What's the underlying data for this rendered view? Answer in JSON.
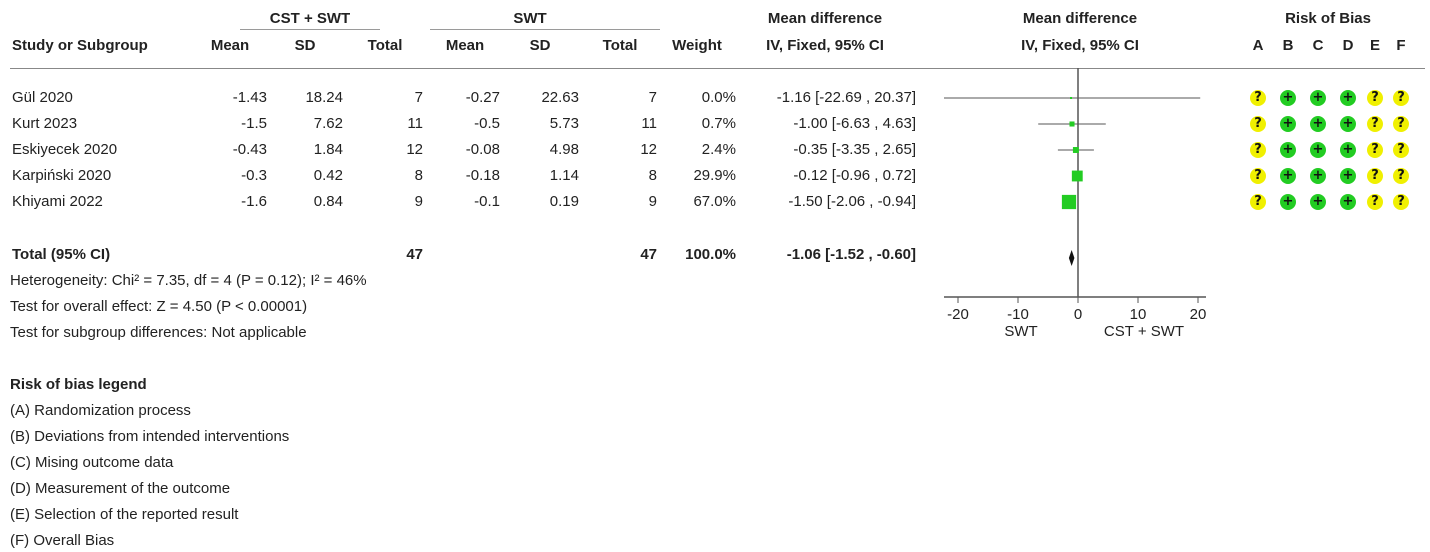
{
  "headers": {
    "group1": "CST + SWT",
    "group2": "SWT",
    "md_title": "Mean difference",
    "md_method": "IV, Fixed, 95% CI",
    "plot_title": "Mean difference",
    "plot_method": "IV, Fixed, 95% CI",
    "rob_title": "Risk of Bias",
    "study": "Study or Subgroup",
    "mean": "Mean",
    "sd": "SD",
    "total": "Total",
    "weight": "Weight",
    "rob_letters": [
      "A",
      "B",
      "C",
      "D",
      "E",
      "F"
    ]
  },
  "studies": [
    {
      "name": "Gül 2020",
      "m1": "-1.43",
      "sd1": "18.24",
      "n1": "7",
      "m2": "-0.27",
      "sd2": "22.63",
      "n2": "7",
      "weight": "0.0%",
      "ci": "-1.16 [-22.69 , 20.37]",
      "rob": [
        "?",
        "+",
        "+",
        "+",
        "?",
        "?"
      ]
    },
    {
      "name": "Kurt 2023",
      "m1": "-1.5",
      "sd1": "7.62",
      "n1": "11",
      "m2": "-0.5",
      "sd2": "5.73",
      "n2": "11",
      "weight": "0.7%",
      "ci": "-1.00 [-6.63 , 4.63]",
      "rob": [
        "?",
        "+",
        "+",
        "+",
        "?",
        "?"
      ]
    },
    {
      "name": "Eskiyecek 2020",
      "m1": "-0.43",
      "sd1": "1.84",
      "n1": "12",
      "m2": "-0.08",
      "sd2": "4.98",
      "n2": "12",
      "weight": "2.4%",
      "ci": "-0.35 [-3.35 , 2.65]",
      "rob": [
        "?",
        "+",
        "+",
        "+",
        "?",
        "?"
      ]
    },
    {
      "name": "Karpiński 2020",
      "m1": "-0.3",
      "sd1": "0.42",
      "n1": "8",
      "m2": "-0.18",
      "sd2": "1.14",
      "n2": "8",
      "weight": "29.9%",
      "ci": "-0.12 [-0.96 , 0.72]",
      "rob": [
        "?",
        "+",
        "+",
        "+",
        "?",
        "?"
      ]
    },
    {
      "name": "Khiyami 2022",
      "m1": "-1.6",
      "sd1": "0.84",
      "n1": "9",
      "m2": "-0.1",
      "sd2": "0.19",
      "n2": "9",
      "weight": "67.0%",
      "ci": "-1.50 [-2.06 , -0.94]",
      "rob": [
        "?",
        "+",
        "+",
        "+",
        "?",
        "?"
      ]
    }
  ],
  "total": {
    "label": "Total (95% CI)",
    "n1": "47",
    "n2": "47",
    "weight": "100.0%",
    "ci": "-1.06 [-1.52 , -0.60]"
  },
  "stats": {
    "heterogeneity": "Heterogeneity: Chi² = 7.35, df = 4 (P = 0.12); I² = 46%",
    "overall": "Test for overall effect: Z = 4.50 (P < 0.00001)",
    "subgroup": "Test for subgroup differences: Not applicable"
  },
  "legend": {
    "title": "Risk of bias legend",
    "items": [
      "(A) Randomization process",
      "(B) Deviations from intended interventions",
      "(C) Mising outcome data",
      "(D) Measurement of the outcome",
      "(E) Selection of the reported result",
      "(F) Overall Bias"
    ]
  },
  "colors": {
    "low_risk": "#22cc22",
    "unclear_risk": "#f0f000",
    "marker": "#22cc22",
    "axis": "#555555"
  },
  "chart_data": {
    "type": "forest",
    "studies": [
      "Gül 2020",
      "Kurt 2023",
      "Eskiyecek 2020",
      "Karpiński 2020",
      "Khiyami 2022"
    ],
    "estimates": [
      -1.16,
      -1.0,
      -0.35,
      -0.12,
      -1.5
    ],
    "ci_low": [
      -22.69,
      -6.63,
      -3.35,
      -0.96,
      -2.06
    ],
    "ci_high": [
      20.37,
      4.63,
      2.65,
      0.72,
      -0.94
    ],
    "weights": [
      0.0,
      0.7,
      2.4,
      29.9,
      67.0
    ],
    "pooled": {
      "estimate": -1.06,
      "ci_low": -1.52,
      "ci_high": -0.6
    },
    "xlim": [
      -20,
      20
    ],
    "ticks": [
      "-20",
      "-10",
      "0",
      "10",
      "20"
    ],
    "left_label": "SWT",
    "right_label": "CST + SWT"
  }
}
